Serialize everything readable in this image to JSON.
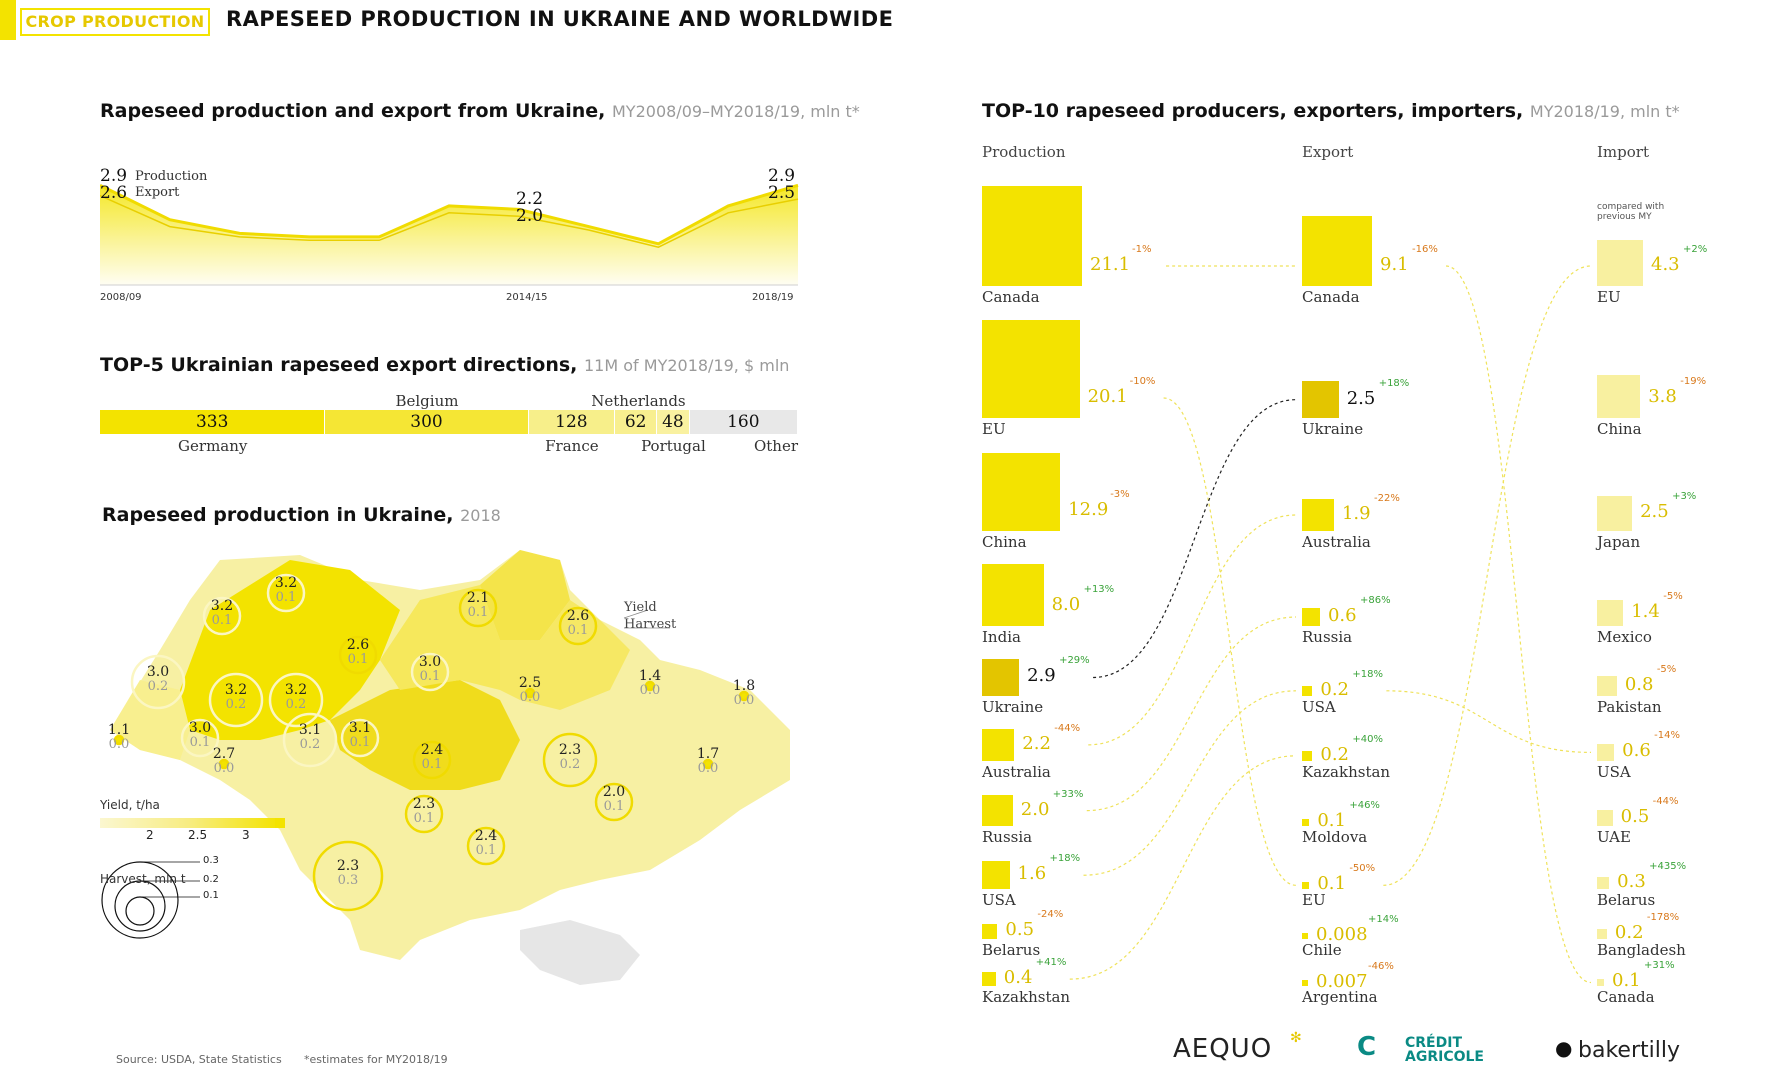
{
  "header": {
    "section_tag": "CROP PRODUCTION",
    "title": "RAPESEED PRODUCTION IN UKRAINE AND WORLDWIDE"
  },
  "colors": {
    "accent": "#f3e300",
    "accent_dark": "#d9bd00",
    "light": "#f7f0a3",
    "grey": "#e8e8e8"
  },
  "line_chart": {
    "title": "Rapeseed production and export from Ukraine,",
    "subtitle": "MY2008/09–MY2018/19, mln t*",
    "legend": {
      "production": "Production",
      "export": "Export"
    },
    "labels": {
      "start_production": "2.9",
      "start_export": "2.6",
      "mid_production": "2.2",
      "mid_export": "2.0",
      "end_production": "2.9",
      "end_export": "2.5"
    },
    "x_ticks": {
      "first": "2008/09",
      "mid": "2014/15",
      "last": "2018/19"
    }
  },
  "export_bar": {
    "title": "TOP-5 Ukrainian rapeseed export directions,",
    "subtitle": "11M of MY2018/19, $ mln",
    "segments": [
      {
        "name": "Germany",
        "value": "333"
      },
      {
        "name": "Belgium",
        "value": "300"
      },
      {
        "name": "France",
        "value": "128"
      },
      {
        "name": "Netherlands",
        "value": "62"
      },
      {
        "name": "Portugal",
        "value": "48"
      },
      {
        "name": "Other",
        "value": "160"
      }
    ]
  },
  "map": {
    "title": "Rapeseed production in Ukraine,",
    "subtitle": "2018",
    "legend_yield_title": "Yield, t/ha",
    "legend_yield_ticks": [
      "2",
      "2.5",
      "3"
    ],
    "legend_harvest_title": "Harvest, mln t",
    "legend_harvest_ticks": [
      "0.3",
      "0.2",
      "0.1"
    ],
    "key_yield": "Yield",
    "key_harvest": "Harvest",
    "regions": [
      {
        "yield": "3.2",
        "harvest": "0.1"
      },
      {
        "yield": "3.2",
        "harvest": "0.1"
      },
      {
        "yield": "2.6",
        "harvest": "0.1"
      },
      {
        "yield": "3.0",
        "harvest": "0.1"
      },
      {
        "yield": "2.1",
        "harvest": "0.1"
      },
      {
        "yield": "2.6",
        "harvest": "0.1"
      },
      {
        "yield": "3.0",
        "harvest": "0.2"
      },
      {
        "yield": "3.2",
        "harvest": "0.2"
      },
      {
        "yield": "3.2",
        "harvest": "0.2"
      },
      {
        "yield": "3.1",
        "harvest": "0.1"
      },
      {
        "yield": "2.5",
        "harvest": "0.0"
      },
      {
        "yield": "1.4",
        "harvest": "0.0"
      },
      {
        "yield": "1.8",
        "harvest": "0.0"
      },
      {
        "yield": "1.1",
        "harvest": "0.0"
      },
      {
        "yield": "3.0",
        "harvest": "0.1"
      },
      {
        "yield": "3.1",
        "harvest": "0.2"
      },
      {
        "yield": "2.7",
        "harvest": "0.0"
      },
      {
        "yield": "2.4",
        "harvest": "0.1"
      },
      {
        "yield": "2.3",
        "harvest": "0.2"
      },
      {
        "yield": "1.7",
        "harvest": "0.0"
      },
      {
        "yield": "2.0",
        "harvest": "0.1"
      },
      {
        "yield": "2.3",
        "harvest": "0.1"
      },
      {
        "yield": "2.4",
        "harvest": "0.1"
      },
      {
        "yield": "2.3",
        "harvest": "0.3"
      }
    ]
  },
  "top10": {
    "title": "TOP-10 rapeseed producers, exporters, importers,",
    "subtitle": "MY2018/19, mln t*",
    "col_production": "Production",
    "col_export": "Export",
    "col_import": "Import",
    "compared_note": "compared with previous MY",
    "production": [
      {
        "country": "Canada",
        "value": "21.1",
        "change": "-1%"
      },
      {
        "country": "EU",
        "value": "20.1",
        "change": "-10%"
      },
      {
        "country": "China",
        "value": "12.9",
        "change": "-3%"
      },
      {
        "country": "India",
        "value": "8.0",
        "change": "+13%"
      },
      {
        "country": "Ukraine",
        "value": "2.9",
        "change": "+29%"
      },
      {
        "country": "Australia",
        "value": "2.2",
        "change": "-44%"
      },
      {
        "country": "Russia",
        "value": "2.0",
        "change": "+33%"
      },
      {
        "country": "USA",
        "value": "1.6",
        "change": "+18%"
      },
      {
        "country": "Belarus",
        "value": "0.5",
        "change": "-24%"
      },
      {
        "country": "Kazakhstan",
        "value": "0.4",
        "change": "+41%"
      }
    ],
    "export": [
      {
        "country": "Canada",
        "value": "9.1",
        "change": "-16%"
      },
      {
        "country": "Ukraine",
        "value": "2.5",
        "change": "+18%"
      },
      {
        "country": "Australia",
        "value": "1.9",
        "change": "-22%"
      },
      {
        "country": "Russia",
        "value": "0.6",
        "change": "+86%"
      },
      {
        "country": "USA",
        "value": "0.2",
        "change": "+18%"
      },
      {
        "country": "Kazakhstan",
        "value": "0.2",
        "change": "+40%"
      },
      {
        "country": "Moldova",
        "value": "0.1",
        "change": "+46%"
      },
      {
        "country": "EU",
        "value": "0.1",
        "change": "-50%"
      },
      {
        "country": "Chile",
        "value": "0.008",
        "change": "+14%"
      },
      {
        "country": "Argentina",
        "value": "0.007",
        "change": "-46%"
      }
    ],
    "import": [
      {
        "country": "EU",
        "value": "4.3",
        "change": "+2%"
      },
      {
        "country": "China",
        "value": "3.8",
        "change": "-19%"
      },
      {
        "country": "Japan",
        "value": "2.5",
        "change": "+3%"
      },
      {
        "country": "Mexico",
        "value": "1.4",
        "change": "-5%"
      },
      {
        "country": "Pakistan",
        "value": "0.8",
        "change": "-5%"
      },
      {
        "country": "USA",
        "value": "0.6",
        "change": "-14%"
      },
      {
        "country": "UAE",
        "value": "0.5",
        "change": "-44%"
      },
      {
        "country": "Belarus",
        "value": "0.3",
        "change": "+435%"
      },
      {
        "country": "Bangladesh",
        "value": "0.2",
        "change": "-178%"
      },
      {
        "country": "Canada",
        "value": "0.1",
        "change": "+31%"
      }
    ]
  },
  "chart_data": [
    {
      "type": "area",
      "x_ticks": [
        "2008/09",
        "2014/15",
        "2018/19"
      ],
      "series": [
        {
          "name": "Production",
          "values": [
            2.9,
            1.9,
            1.5,
            1.4,
            1.4,
            2.3,
            2.2,
            1.7,
            1.2,
            2.3,
            2.9
          ]
        },
        {
          "name": "Export",
          "values": [
            2.6,
            1.7,
            1.4,
            1.3,
            1.3,
            2.1,
            2.0,
            1.6,
            1.1,
            2.1,
            2.5
          ]
        }
      ]
    },
    {
      "type": "bar",
      "subtype": "stacked-horizontal",
      "categories": [
        "Germany",
        "Belgium",
        "France",
        "Netherlands",
        "Portugal",
        "Other"
      ],
      "values": [
        333,
        300,
        128,
        62,
        48,
        160
      ]
    },
    {
      "type": "bar",
      "subtype": "proportional-squares",
      "series": [
        {
          "name": "Production",
          "categories": [
            "Canada",
            "EU",
            "China",
            "India",
            "Ukraine",
            "Australia",
            "Russia",
            "USA",
            "Belarus",
            "Kazakhstan"
          ],
          "values": [
            21.1,
            20.1,
            12.9,
            8.0,
            2.9,
            2.2,
            2.0,
            1.6,
            0.5,
            0.4
          ]
        },
        {
          "name": "Export",
          "categories": [
            "Canada",
            "Ukraine",
            "Australia",
            "Russia",
            "USA",
            "Kazakhstan",
            "Moldova",
            "EU",
            "Chile",
            "Argentina"
          ],
          "values": [
            9.1,
            2.5,
            1.9,
            0.6,
            0.2,
            0.2,
            0.1,
            0.1,
            0.008,
            0.007
          ]
        },
        {
          "name": "Import",
          "categories": [
            "EU",
            "China",
            "Japan",
            "Mexico",
            "Pakistan",
            "USA",
            "UAE",
            "Belarus",
            "Bangladesh",
            "Canada"
          ],
          "values": [
            4.3,
            3.8,
            2.5,
            1.4,
            0.8,
            0.6,
            0.5,
            0.3,
            0.2,
            0.1
          ]
        }
      ]
    }
  ],
  "footer": {
    "source": "Source: USDA, State Statistics",
    "note": "*estimates for MY2018/19",
    "logos": [
      "AEQUO",
      "CRÉDIT AGRICOLE",
      "bakertilly"
    ]
  }
}
